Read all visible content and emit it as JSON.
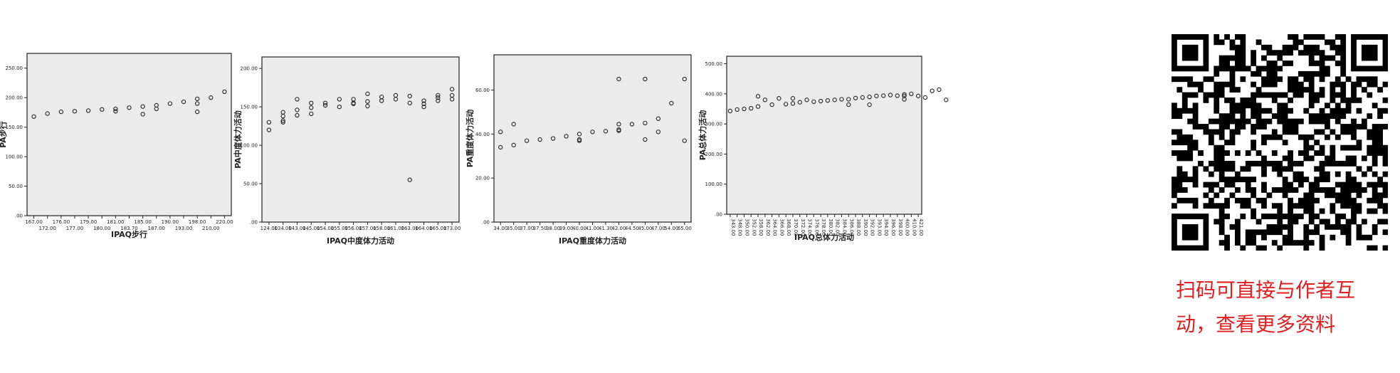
{
  "chart_data": [
    {
      "type": "scatter",
      "xlabel": "IPAQ步行",
      "ylabel": "PA步行",
      "x_ticks": [
        "167.00",
        "172.00",
        "176.00",
        "177.00",
        "179.00",
        "180.00",
        "181.00",
        "183.70",
        "185.00",
        "187.00",
        "190.00",
        "193.00",
        "198.00",
        "210.00",
        "220.00"
      ],
      "y_ticks": [
        ".00",
        "50.00",
        "100.00",
        "150.00",
        "200.00",
        "250.00"
      ],
      "ylim": [
        0,
        275
      ],
      "points": [
        [
          0,
          168
        ],
        [
          1,
          173
        ],
        [
          2,
          176
        ],
        [
          3,
          177
        ],
        [
          4,
          178
        ],
        [
          5,
          180
        ],
        [
          6,
          181
        ],
        [
          6,
          177
        ],
        [
          7,
          183
        ],
        [
          8,
          185
        ],
        [
          8,
          172
        ],
        [
          9,
          187
        ],
        [
          9,
          181
        ],
        [
          10,
          190
        ],
        [
          11,
          193
        ],
        [
          12,
          198
        ],
        [
          12,
          190
        ],
        [
          12,
          176
        ],
        [
          13,
          200
        ],
        [
          14,
          210
        ]
      ]
    },
    {
      "type": "scatter",
      "xlabel": "IPAQ中度体力活动",
      "ylabel": "PA中度体力活动",
      "x_ticks": [
        "124.00",
        "134.00",
        "143.00",
        "145.00",
        "154.00",
        "155.00",
        "156.00",
        "157.00",
        "158.00",
        "161.00",
        "163.00",
        "164.00",
        "165.00",
        "173.00"
      ],
      "y_ticks": [
        ".00",
        "50.00",
        "100.00",
        "150.00",
        "200.00"
      ],
      "ylim": [
        0,
        215
      ],
      "points": [
        [
          0,
          130
        ],
        [
          0,
          120
        ],
        [
          1,
          143
        ],
        [
          1,
          138
        ],
        [
          1,
          132
        ],
        [
          1,
          130
        ],
        [
          2,
          160
        ],
        [
          2,
          146
        ],
        [
          2,
          139
        ],
        [
          3,
          155
        ],
        [
          3,
          149
        ],
        [
          3,
          141
        ],
        [
          4,
          155
        ],
        [
          4,
          152
        ],
        [
          5,
          160
        ],
        [
          5,
          150
        ],
        [
          6,
          160
        ],
        [
          6,
          155
        ],
        [
          6,
          154
        ],
        [
          7,
          167
        ],
        [
          7,
          157
        ],
        [
          7,
          151
        ],
        [
          8,
          163
        ],
        [
          8,
          158
        ],
        [
          9,
          165
        ],
        [
          9,
          160
        ],
        [
          10,
          164
        ],
        [
          10,
          155
        ],
        [
          10,
          55
        ],
        [
          11,
          158
        ],
        [
          11,
          154
        ],
        [
          11,
          150
        ],
        [
          12,
          165
        ],
        [
          12,
          162
        ],
        [
          12,
          158
        ],
        [
          13,
          173
        ],
        [
          13,
          165
        ],
        [
          13,
          160
        ]
      ]
    },
    {
      "type": "scatter",
      "xlabel": "IPAQ重度体力活动",
      "ylabel": "PA重度体力活动",
      "x_ticks": [
        "34.00",
        "35.00",
        "37.00",
        "37.50",
        "38.00",
        "39.00",
        "40.00",
        "41.00",
        "41.30",
        "42.00",
        "44.50",
        "45.00",
        "47.00",
        "54.00",
        "65.00"
      ],
      "y_ticks": [
        ".00",
        "20.00",
        "40.00",
        "60.00"
      ],
      "ylim": [
        0,
        76
      ],
      "points": [
        [
          0,
          41
        ],
        [
          0,
          34
        ],
        [
          1,
          44.5
        ],
        [
          1,
          35
        ],
        [
          2,
          37
        ],
        [
          3,
          37.5
        ],
        [
          4,
          38
        ],
        [
          5,
          39
        ],
        [
          6,
          40
        ],
        [
          6,
          37.5
        ],
        [
          6,
          37
        ],
        [
          7,
          41
        ],
        [
          8,
          41.3
        ],
        [
          9,
          65
        ],
        [
          9,
          44.5
        ],
        [
          9,
          42
        ],
        [
          9,
          41.5
        ],
        [
          10,
          44.5
        ],
        [
          11,
          65
        ],
        [
          11,
          45
        ],
        [
          11,
          37.5
        ],
        [
          12,
          47
        ],
        [
          12,
          41
        ],
        [
          13,
          54
        ],
        [
          14,
          65
        ],
        [
          14,
          37
        ]
      ]
    },
    {
      "type": "scatter",
      "xlabel": "IPAQ总体力活动",
      "ylabel": "PA总体力活动",
      "x_ticks": [
        "343.00",
        "348.00",
        "350.00",
        "352.00",
        "358.00",
        "362.00",
        "364.00",
        "366.00",
        "368.00",
        "370.00",
        "372.00",
        "374.00",
        "376.00",
        "378.00",
        "380.00",
        "382.00",
        "384.00",
        "386.00",
        "388.00",
        "390.00",
        "392.00",
        "393.00",
        "394.00",
        "396.00",
        "398.00",
        "400.00",
        "410.00",
        "421.00"
      ],
      "y_ticks": [
        ".00",
        "100.00",
        "200.00",
        "300.00",
        "400.00",
        "500.00"
      ],
      "ylim": [
        0,
        525
      ],
      "points": [
        [
          0,
          343
        ],
        [
          1,
          348
        ],
        [
          2,
          350
        ],
        [
          3,
          352
        ],
        [
          4,
          392
        ],
        [
          4,
          358
        ],
        [
          5,
          380
        ],
        [
          6,
          364
        ],
        [
          7,
          385
        ],
        [
          8,
          366
        ],
        [
          9,
          385
        ],
        [
          9,
          368
        ],
        [
          10,
          372
        ],
        [
          11,
          380
        ],
        [
          12,
          374
        ],
        [
          13,
          376
        ],
        [
          14,
          378
        ],
        [
          15,
          380
        ],
        [
          16,
          382
        ],
        [
          17,
          382
        ],
        [
          17,
          364
        ],
        [
          18,
          386
        ],
        [
          19,
          388
        ],
        [
          20,
          390
        ],
        [
          20,
          364
        ],
        [
          21,
          393
        ],
        [
          22,
          394
        ],
        [
          23,
          396
        ],
        [
          24,
          394
        ],
        [
          25,
          398
        ],
        [
          25,
          393
        ],
        [
          25,
          382
        ],
        [
          26,
          400
        ],
        [
          27,
          393
        ],
        [
          28,
          388
        ],
        [
          29,
          410
        ],
        [
          30,
          414
        ],
        [
          31,
          380
        ]
      ]
    }
  ],
  "qr": {
    "icon": "qr-code-icon"
  },
  "caption": "扫码可直接与作者互\n动，查看更多资料",
  "colors": {
    "caption": "#e02020",
    "plot_bg": "#ebebeb"
  }
}
